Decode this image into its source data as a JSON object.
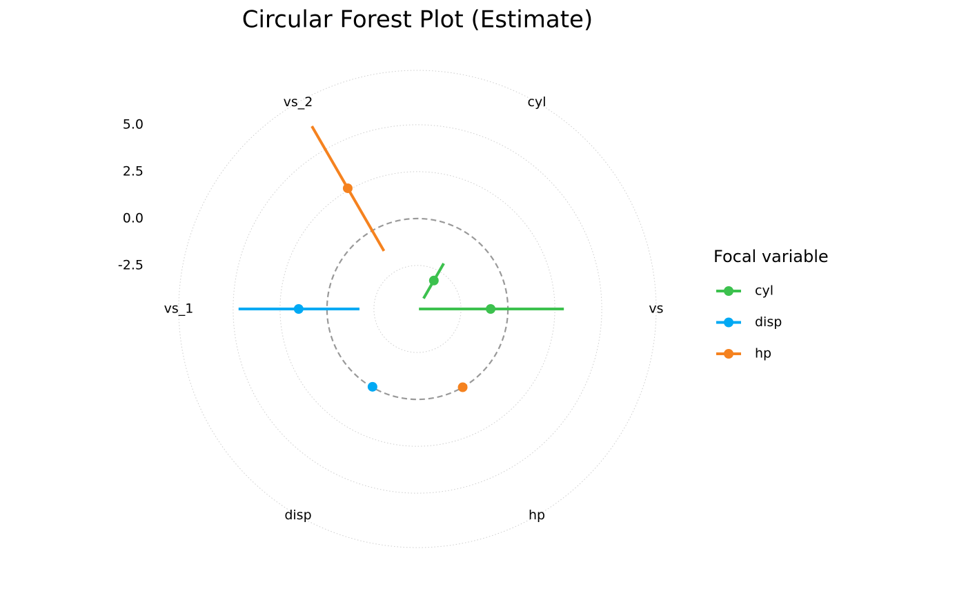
{
  "chart_data": {
    "type": "circular-forest",
    "title": "Circular Forest Plot (Estimate)",
    "categories": [
      "vs",
      "cyl",
      "vs_2",
      "vs_1",
      "disp",
      "hp"
    ],
    "ylim": [
      -4.82,
      7.9
    ],
    "yticks": [
      5.0,
      2.5,
      0.0,
      -2.5
    ],
    "yticks_labels": [
      "5.0",
      "2.5",
      "0.0",
      "-2.5"
    ],
    "reference_line": 0,
    "legend_title": "Focal variable",
    "legend_position": "right",
    "series": [
      {
        "name": "cyl",
        "color": "#3cc14e",
        "values": [
          -0.92,
          -3.07,
          null,
          null,
          null,
          null
        ],
        "lower": [
          -4.74,
          -4.17,
          null,
          null,
          null,
          null
        ],
        "upper": [
          2.98,
          -2.02,
          null,
          null,
          null,
          null
        ]
      },
      {
        "name": "disp",
        "color": "#00a9f4",
        "values": [
          null,
          null,
          null,
          1.51,
          -0.03,
          null
        ],
        "lower": [
          null,
          null,
          null,
          -1.73,
          null,
          null
        ],
        "upper": [
          null,
          null,
          null,
          4.71,
          null,
          null
        ]
      },
      {
        "name": "hp",
        "color": "#f5821f",
        "values": [
          null,
          null,
          2.61,
          null,
          null,
          0.0
        ],
        "lower": [
          null,
          null,
          -1.25,
          null,
          null,
          null
        ],
        "upper": [
          null,
          null,
          6.43,
          null,
          null,
          null
        ]
      }
    ]
  }
}
